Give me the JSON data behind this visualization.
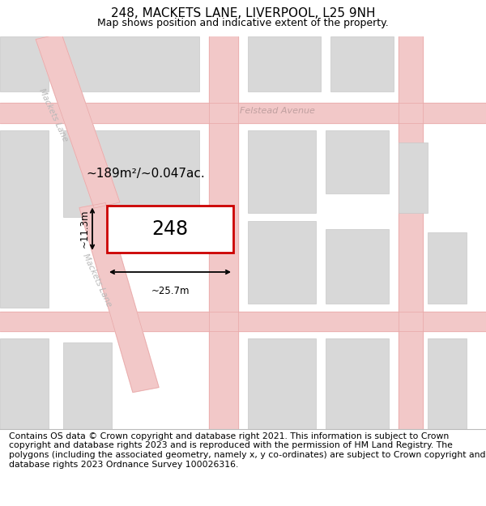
{
  "title": "248, MACKETS LANE, LIVERPOOL, L25 9NH",
  "subtitle": "Map shows position and indicative extent of the property.",
  "footer": "Contains OS data © Crown copyright and database right 2021. This information is subject to Crown copyright and database rights 2023 and is reproduced with the permission of HM Land Registry. The polygons (including the associated geometry, namely x, y co-ordinates) are subject to Crown copyright and database rights 2023 Ordnance Survey 100026316.",
  "map_bg": "#f7f7f7",
  "title_fontsize": 11,
  "subtitle_fontsize": 9,
  "footer_fontsize": 7.8,
  "road_color": "#f2c8c8",
  "road_edge_color": "#e8a8a8",
  "block_color": "#d8d8d8",
  "block_edge": "#c8c8c8",
  "highlight_color": "#cc0000",
  "label_color": "#c0a0a0",
  "street_label_color": "#b8b8b8",
  "measure_label": "~189m²/~0.047ac.",
  "property_label": "248",
  "dim_width": "~25.7m",
  "dim_height": "~11.3m",
  "street_felstead": "Felstead Avenue",
  "street_mackets_upper": "Mackets Lane",
  "street_mackets_lower": "Mackets Lane"
}
